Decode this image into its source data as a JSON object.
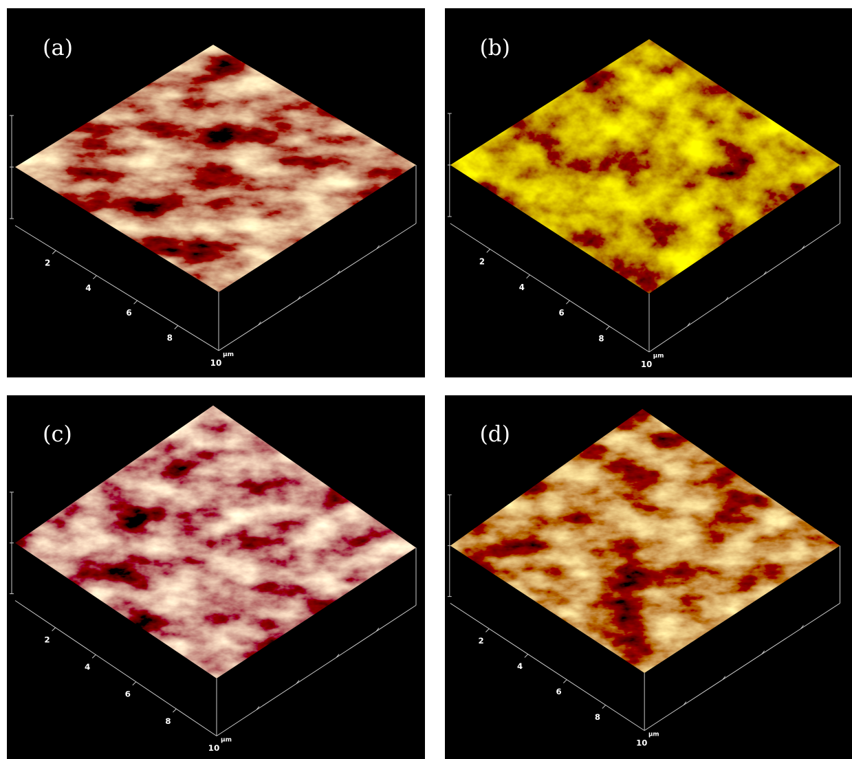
{
  "panels": [
    {
      "label": "(a)",
      "ticks": [
        2,
        4,
        6,
        8,
        10
      ],
      "unit": "μm"
    },
    {
      "label": "(b)",
      "ticks": [
        2,
        4,
        6,
        8,
        10
      ],
      "unit": "μm"
    },
    {
      "label": "(c)",
      "ticks": [
        2,
        4,
        6,
        8,
        10
      ],
      "unit": "μm"
    },
    {
      "label": "(d)",
      "ticks": [
        2,
        4,
        6,
        8,
        10
      ],
      "unit": "μm"
    }
  ]
}
